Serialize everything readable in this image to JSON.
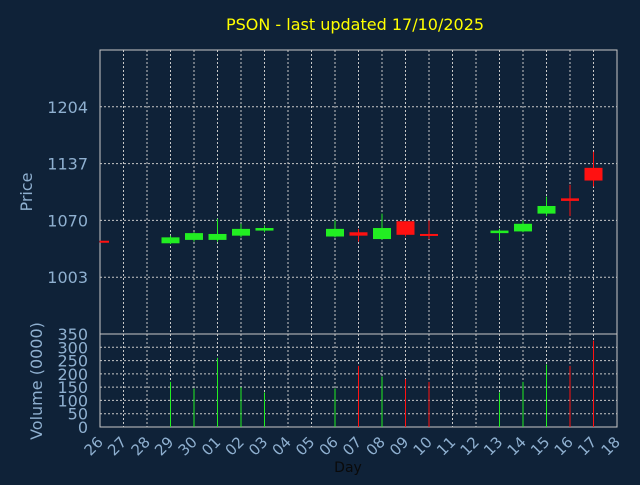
{
  "chart_data": {
    "type": "candlestick",
    "title": "PSON - last updated 17/10/2025",
    "price_ylabel": "Price",
    "volume_ylabel": "Volume (0000)",
    "xlabel": "Day",
    "price_ylim": [
      936,
      1271
    ],
    "price_ticks": [
      1003,
      1070,
      1137,
      1204
    ],
    "volume_ylim": [
      0,
      350
    ],
    "volume_ticks": [
      0,
      50,
      100,
      150,
      200,
      250,
      300,
      350
    ],
    "x_tick_labels": [
      "26",
      "27",
      "28",
      "29",
      "30",
      "01",
      "02",
      "03",
      "04",
      "05",
      "06",
      "07",
      "08",
      "09",
      "10",
      "11",
      "12",
      "13",
      "14",
      "15",
      "16",
      "17",
      "18"
    ],
    "grid": true,
    "colors": {
      "background": "#0f2238",
      "title": "#ffff00",
      "axis_text": "#8fb0d0",
      "grid": "#c8c8c8",
      "up": "#22ee22",
      "down": "#ff1111"
    },
    "candles": [
      {
        "day": "26",
        "open": 1046,
        "high": 1046,
        "low": 1044,
        "close": 1044
      },
      {
        "day": "29",
        "open": 1043,
        "high": 1052,
        "low": 1042,
        "close": 1050
      },
      {
        "day": "30",
        "open": 1047,
        "high": 1056,
        "low": 1045,
        "close": 1055
      },
      {
        "day": "01",
        "open": 1047,
        "high": 1072,
        "low": 1045,
        "close": 1054
      },
      {
        "day": "02",
        "open": 1052,
        "high": 1066,
        "low": 1050,
        "close": 1060
      },
      {
        "day": "03",
        "open": 1058,
        "high": 1064,
        "low": 1056,
        "close": 1061
      },
      {
        "day": "06",
        "open": 1051,
        "high": 1070,
        "low": 1050,
        "close": 1060
      },
      {
        "day": "07",
        "open": 1056,
        "high": 1060,
        "low": 1045,
        "close": 1052
      },
      {
        "day": "08",
        "open": 1048,
        "high": 1078,
        "low": 1047,
        "close": 1061
      },
      {
        "day": "09",
        "open": 1069,
        "high": 1069,
        "low": 1051,
        "close": 1053
      },
      {
        "day": "10",
        "open": 1054,
        "high": 1070,
        "low": 1048,
        "close": 1053
      },
      {
        "day": "13",
        "open": 1055,
        "high": 1060,
        "low": 1046,
        "close": 1058
      },
      {
        "day": "14",
        "open": 1057,
        "high": 1070,
        "low": 1056,
        "close": 1066
      },
      {
        "day": "15",
        "open": 1078,
        "high": 1098,
        "low": 1075,
        "close": 1087
      },
      {
        "day": "16",
        "open": 1096,
        "high": 1112,
        "low": 1075,
        "close": 1093
      },
      {
        "day": "17",
        "open": 1132,
        "high": 1151,
        "low": 1110,
        "close": 1117
      }
    ],
    "volumes": [
      {
        "day": "29",
        "value": 170,
        "dir": "up"
      },
      {
        "day": "30",
        "value": 145,
        "dir": "up"
      },
      {
        "day": "01",
        "value": 260,
        "dir": "up"
      },
      {
        "day": "02",
        "value": 150,
        "dir": "up"
      },
      {
        "day": "03",
        "value": 130,
        "dir": "up"
      },
      {
        "day": "06",
        "value": 145,
        "dir": "up"
      },
      {
        "day": "07",
        "value": 230,
        "dir": "down"
      },
      {
        "day": "08",
        "value": 190,
        "dir": "up"
      },
      {
        "day": "09",
        "value": 180,
        "dir": "down"
      },
      {
        "day": "10",
        "value": 170,
        "dir": "down"
      },
      {
        "day": "13",
        "value": 130,
        "dir": "up"
      },
      {
        "day": "14",
        "value": 170,
        "dir": "up"
      },
      {
        "day": "15",
        "value": 235,
        "dir": "up"
      },
      {
        "day": "16",
        "value": 230,
        "dir": "down"
      },
      {
        "day": "17",
        "value": 325,
        "dir": "down"
      }
    ]
  }
}
